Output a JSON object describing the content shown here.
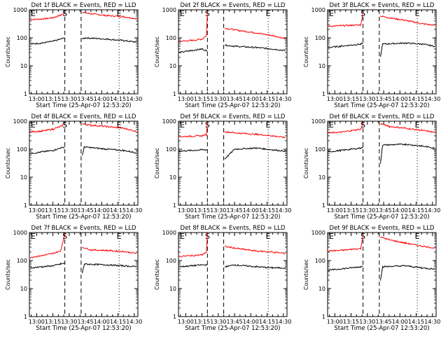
{
  "colors": {
    "events": "#000000",
    "lld": "#ff0000",
    "axis": "#000000",
    "background": "#ffffff"
  },
  "chart_data": [
    {
      "type": "line",
      "title": "Det 1f BLACK = Events, RED = LLD",
      "xlabel": "Start Time (25-Apr-07 12:53:20)",
      "ylabel": "Counts/sec",
      "yscale": "log",
      "ylim": [
        1,
        1000
      ],
      "xlim": [
        "12:53:20",
        "14:33:20"
      ],
      "x_ticks": [
        "13:00",
        "13:15",
        "13:30",
        "13:45",
        "14:00",
        "14:15",
        "14:30"
      ],
      "y_ticks": [
        "1",
        "10",
        "100",
        "1000"
      ],
      "markers": [
        {
          "label": "E",
          "time": "12:53:20",
          "style": "dotted"
        },
        {
          "label": "S",
          "time": "13:26",
          "style": "dashed"
        },
        {
          "label": "",
          "time": "13:41",
          "style": "dashed"
        },
        {
          "label": "E",
          "time": "14:16",
          "style": "dotted"
        }
      ],
      "gap": [
        "13:27",
        "13:42"
      ],
      "series": [
        {
          "color": "red",
          "times": [
            "12:54",
            "13:05",
            "13:15",
            "13:22",
            "13:26",
            "13:42",
            "13:50",
            "14:05",
            "14:20",
            "14:32"
          ],
          "values": [
            450,
            470,
            520,
            640,
            760,
            820,
            720,
            620,
            570,
            480
          ]
        },
        {
          "color": "black",
          "times": [
            "12:54",
            "13:05",
            "13:15",
            "13:22",
            "13:26",
            "13:42",
            "13:45",
            "14:05",
            "14:20",
            "14:32"
          ],
          "values": [
            60,
            65,
            75,
            90,
            100,
            90,
            100,
            90,
            80,
            70
          ]
        }
      ]
    },
    {
      "type": "line",
      "title": "Det 2f BLACK = Events, RED = LLD",
      "xlabel": "Start Time (25-Apr-07 12:53:20)",
      "ylabel": "Counts/sec",
      "yscale": "log",
      "ylim": [
        1,
        1000
      ],
      "xlim": [
        "12:53:20",
        "14:33:20"
      ],
      "x_ticks": [
        "13:00",
        "13:15",
        "13:30",
        "13:45",
        "14:00",
        "14:15",
        "14:30"
      ],
      "y_ticks": [
        "1",
        "10",
        "100",
        "1000"
      ],
      "markers": [
        {
          "label": "E",
          "time": "12:53:20",
          "style": "dotted"
        },
        {
          "label": "S",
          "time": "13:20",
          "style": "dashed"
        },
        {
          "label": "",
          "time": "13:35",
          "style": "dashed"
        },
        {
          "label": "E",
          "time": "14:16",
          "style": "dotted"
        }
      ],
      "gap": [
        "13:21",
        "13:35"
      ],
      "series": [
        {
          "color": "red",
          "times": [
            "12:54",
            "13:05",
            "13:15",
            "13:19",
            "13:20",
            "13:36",
            "13:50",
            "14:05",
            "14:20",
            "14:32"
          ],
          "values": [
            75,
            80,
            90,
            120,
            900,
            220,
            180,
            150,
            120,
            95
          ]
        },
        {
          "color": "black",
          "times": [
            "12:54",
            "13:05",
            "13:15",
            "13:19",
            "13:20",
            "13:36",
            "13:45",
            "14:05",
            "14:20",
            "14:32"
          ],
          "values": [
            30,
            35,
            40,
            35,
            35,
            55,
            50,
            45,
            40,
            35
          ]
        }
      ]
    },
    {
      "type": "line",
      "title": "Det 3f BLACK = Events, RED = LLD",
      "xlabel": "Start Time (25-Apr-07 12:53:20)",
      "ylabel": "Counts/sec",
      "yscale": "log",
      "ylim": [
        1,
        1000
      ],
      "xlim": [
        "12:53:20",
        "14:33:20"
      ],
      "x_ticks": [
        "13:00",
        "13:15",
        "13:30",
        "13:45",
        "14:00",
        "14:15",
        "14:30"
      ],
      "y_ticks": [
        "1",
        "10",
        "100",
        "1000"
      ],
      "markers": [
        {
          "label": "E",
          "time": "12:53:20",
          "style": "dotted"
        },
        {
          "label": "S",
          "time": "13:26",
          "style": "dashed"
        },
        {
          "label": "",
          "time": "13:41",
          "style": "dashed"
        },
        {
          "label": "E",
          "time": "14:16",
          "style": "dotted"
        }
      ],
      "gap": [
        "13:27",
        "13:42"
      ],
      "series": [
        {
          "color": "red",
          "times": [
            "12:54",
            "13:05",
            "13:15",
            "13:24",
            "13:26",
            "13:42",
            "13:50",
            "14:05",
            "14:20",
            "14:32"
          ],
          "values": [
            260,
            270,
            280,
            290,
            800,
            600,
            520,
            420,
            320,
            280
          ]
        },
        {
          "color": "black",
          "times": [
            "12:54",
            "13:05",
            "13:15",
            "13:24",
            "13:26",
            "13:42",
            "13:44",
            "14:05",
            "14:20",
            "14:32"
          ],
          "values": [
            45,
            50,
            55,
            60,
            65,
            20,
            60,
            65,
            60,
            50
          ]
        }
      ]
    },
    {
      "type": "line",
      "title": "Det 4f BLACK = Events, RED = LLD",
      "xlabel": "Start Time (25-Apr-07 12:53:20)",
      "ylabel": "Counts/sec",
      "yscale": "log",
      "ylim": [
        1,
        1000
      ],
      "xlim": [
        "12:53:20",
        "14:33:20"
      ],
      "x_ticks": [
        "13:00",
        "13:15",
        "13:30",
        "13:45",
        "14:00",
        "14:15",
        "14:30"
      ],
      "y_ticks": [
        "1",
        "10",
        "100",
        "1000"
      ],
      "markers": [
        {
          "label": "E",
          "time": "12:53:20",
          "style": "dotted"
        },
        {
          "label": "S",
          "time": "13:26",
          "style": "dashed"
        },
        {
          "label": "",
          "time": "13:41",
          "style": "dashed"
        },
        {
          "label": "E",
          "time": "14:16",
          "style": "dotted"
        }
      ],
      "gap": [
        "13:27",
        "13:42"
      ],
      "series": [
        {
          "color": "red",
          "times": [
            "12:54",
            "13:05",
            "13:15",
            "13:22",
            "13:26",
            "13:42",
            "13:50",
            "14:05",
            "14:20",
            "14:32"
          ],
          "values": [
            420,
            440,
            520,
            640,
            820,
            800,
            720,
            640,
            560,
            430
          ]
        },
        {
          "color": "black",
          "times": [
            "12:54",
            "13:05",
            "13:15",
            "13:22",
            "13:26",
            "13:42",
            "13:44",
            "14:05",
            "14:20",
            "14:32"
          ],
          "values": [
            70,
            80,
            90,
            110,
            120,
            60,
            120,
            100,
            90,
            75
          ]
        }
      ]
    },
    {
      "type": "line",
      "title": "Det 5f BLACK = Events, RED = LLD",
      "xlabel": "Start Time (25-Apr-07 12:53:20)",
      "ylabel": "Counts/sec",
      "yscale": "log",
      "ylim": [
        1,
        1000
      ],
      "xlim": [
        "12:53:20",
        "14:33:20"
      ],
      "x_ticks": [
        "13:00",
        "13:15",
        "13:30",
        "13:45",
        "14:00",
        "14:15",
        "14:30"
      ],
      "y_ticks": [
        "1",
        "10",
        "100",
        "1000"
      ],
      "markers": [
        {
          "label": "E",
          "time": "12:53:20",
          "style": "dotted"
        },
        {
          "label": "S",
          "time": "13:20",
          "style": "dashed"
        },
        {
          "label": "",
          "time": "13:35",
          "style": "dashed"
        },
        {
          "label": "E",
          "time": "14:16",
          "style": "dotted"
        }
      ],
      "gap": [
        "13:21",
        "13:35"
      ],
      "series": [
        {
          "color": "red",
          "times": [
            "12:54",
            "13:05",
            "13:15",
            "13:19",
            "13:20",
            "13:36",
            "13:50",
            "14:05",
            "14:20",
            "14:32"
          ],
          "values": [
            280,
            290,
            300,
            330,
            950,
            420,
            370,
            340,
            300,
            260
          ]
        },
        {
          "color": "black",
          "times": [
            "12:54",
            "13:05",
            "13:15",
            "13:19",
            "13:20",
            "13:36",
            "13:45",
            "14:05",
            "14:20",
            "14:32"
          ],
          "values": [
            85,
            90,
            95,
            95,
            95,
            45,
            100,
            110,
            95,
            85
          ]
        }
      ]
    },
    {
      "type": "line",
      "title": "Det 6f BLACK = Events, RED = LLD",
      "xlabel": "Start Time (25-Apr-07 12:53:20)",
      "ylabel": "Counts/sec",
      "yscale": "log",
      "ylim": [
        1,
        1000
      ],
      "xlim": [
        "12:53:20",
        "14:33:20"
      ],
      "x_ticks": [
        "13:00",
        "13:15",
        "13:30",
        "13:45",
        "14:00",
        "14:15",
        "14:30"
      ],
      "y_ticks": [
        "1",
        "10",
        "100",
        "1000"
      ],
      "markers": [
        {
          "label": "E",
          "time": "12:53:20",
          "style": "dotted"
        },
        {
          "label": "S",
          "time": "13:26",
          "style": "dashed"
        },
        {
          "label": "",
          "time": "13:41",
          "style": "dashed"
        },
        {
          "label": "E",
          "time": "14:16",
          "style": "dotted"
        }
      ],
      "gap": [
        "13:27",
        "13:42"
      ],
      "series": [
        {
          "color": "red",
          "times": [
            "12:54",
            "13:05",
            "13:15",
            "13:24",
            "13:26",
            "13:42",
            "13:50",
            "14:05",
            "14:20",
            "14:32"
          ],
          "values": [
            380,
            400,
            460,
            520,
            900,
            820,
            650,
            560,
            470,
            400
          ]
        },
        {
          "color": "black",
          "times": [
            "12:54",
            "13:05",
            "13:15",
            "13:24",
            "13:26",
            "13:42",
            "13:44",
            "14:05",
            "14:20",
            "14:32"
          ],
          "values": [
            80,
            90,
            100,
            110,
            120,
            30,
            140,
            150,
            130,
            110
          ]
        }
      ]
    },
    {
      "type": "line",
      "title": "Det 7f BLACK = Events, RED = LLD",
      "xlabel": "Start Time (25-Apr-07 12:53:20)",
      "ylabel": "Counts/sec",
      "yscale": "log",
      "ylim": [
        1,
        1000
      ],
      "xlim": [
        "12:53:20",
        "14:33:20"
      ],
      "x_ticks": [
        "13:00",
        "13:15",
        "13:30",
        "13:45",
        "14:00",
        "14:15",
        "14:30"
      ],
      "y_ticks": [
        "1",
        "10",
        "100",
        "1000"
      ],
      "markers": [
        {
          "label": "E",
          "time": "12:53:20",
          "style": "dotted"
        },
        {
          "label": "S",
          "time": "13:26",
          "style": "dashed"
        },
        {
          "label": "",
          "time": "13:41",
          "style": "dashed"
        },
        {
          "label": "E",
          "time": "14:16",
          "style": "dotted"
        }
      ],
      "gap": [
        "13:27",
        "13:42"
      ],
      "series": [
        {
          "color": "red",
          "times": [
            "12:54",
            "13:05",
            "13:15",
            "13:22",
            "13:26",
            "13:42",
            "13:50",
            "14:05",
            "14:20",
            "14:32"
          ],
          "values": [
            130,
            150,
            180,
            220,
            900,
            300,
            240,
            230,
            210,
            180
          ]
        },
        {
          "color": "black",
          "times": [
            "12:54",
            "13:05",
            "13:15",
            "13:22",
            "13:26",
            "13:42",
            "13:44",
            "14:05",
            "14:20",
            "14:32"
          ],
          "values": [
            55,
            60,
            65,
            75,
            80,
            35,
            75,
            70,
            65,
            60
          ]
        }
      ]
    },
    {
      "type": "line",
      "title": "Det 8f BLACK = Events, RED = LLD",
      "xlabel": "Start Time (25-Apr-07 12:53:20)",
      "ylabel": "Counts/sec",
      "yscale": "log",
      "ylim": [
        1,
        1000
      ],
      "xlim": [
        "12:53:20",
        "14:33:20"
      ],
      "x_ticks": [
        "13:00",
        "13:15",
        "13:30",
        "13:45",
        "14:00",
        "14:15",
        "14:30"
      ],
      "y_ticks": [
        "1",
        "10",
        "100",
        "1000"
      ],
      "markers": [
        {
          "label": "E",
          "time": "12:53:20",
          "style": "dotted"
        },
        {
          "label": "S",
          "time": "13:20",
          "style": "dashed"
        },
        {
          "label": "",
          "time": "13:35",
          "style": "dashed"
        },
        {
          "label": "E",
          "time": "14:16",
          "style": "dotted"
        }
      ],
      "gap": [
        "13:21",
        "13:35"
      ],
      "series": [
        {
          "color": "red",
          "times": [
            "12:54",
            "13:05",
            "13:15",
            "13:19",
            "13:20",
            "13:36",
            "13:50",
            "14:05",
            "14:20",
            "14:32"
          ],
          "values": [
            140,
            150,
            160,
            200,
            950,
            320,
            260,
            220,
            200,
            180
          ]
        },
        {
          "color": "black",
          "times": [
            "12:54",
            "13:05",
            "13:15",
            "13:19",
            "13:20",
            "13:36",
            "13:45",
            "14:05",
            "14:20",
            "14:32"
          ],
          "values": [
            60,
            65,
            70,
            70,
            70,
            60,
            70,
            60,
            55,
            55
          ]
        }
      ]
    },
    {
      "type": "line",
      "title": "Det 9f BLACK = Events, RED = LLD",
      "xlabel": "Start Time (25-Apr-07 12:53:20)",
      "ylabel": "Counts/sec",
      "yscale": "log",
      "ylim": [
        1,
        1000
      ],
      "xlim": [
        "12:53:20",
        "14:33:20"
      ],
      "x_ticks": [
        "13:00",
        "13:15",
        "13:30",
        "13:45",
        "14:00",
        "14:15",
        "14:30"
      ],
      "y_ticks": [
        "1",
        "10",
        "100",
        "1000"
      ],
      "markers": [
        {
          "label": "E",
          "time": "12:53:20",
          "style": "dotted"
        },
        {
          "label": "S",
          "time": "13:26",
          "style": "dashed"
        },
        {
          "label": "",
          "time": "13:41",
          "style": "dashed"
        },
        {
          "label": "E",
          "time": "14:16",
          "style": "dotted"
        }
      ],
      "gap": [
        "13:27",
        "13:42"
      ],
      "series": [
        {
          "color": "red",
          "times": [
            "12:54",
            "13:05",
            "13:15",
            "13:24",
            "13:26",
            "13:42",
            "13:50",
            "14:05",
            "14:20",
            "14:32"
          ],
          "values": [
            220,
            230,
            250,
            270,
            900,
            700,
            550,
            420,
            330,
            280
          ]
        },
        {
          "color": "black",
          "times": [
            "12:54",
            "13:05",
            "13:15",
            "13:24",
            "13:26",
            "13:42",
            "13:44",
            "14:05",
            "14:20",
            "14:32"
          ],
          "values": [
            45,
            50,
            55,
            60,
            65,
            20,
            60,
            65,
            55,
            50
          ]
        }
      ]
    }
  ]
}
